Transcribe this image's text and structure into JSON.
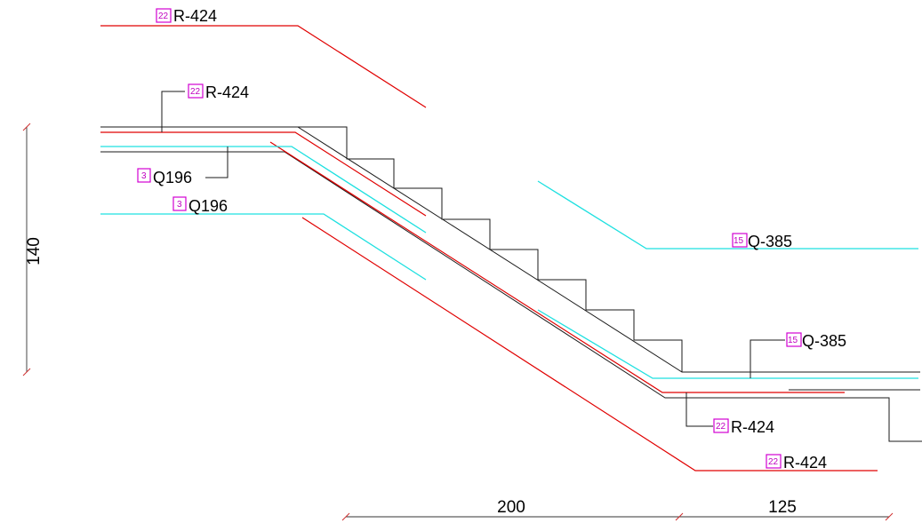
{
  "labels": [
    {
      "id": "r424-top",
      "tag": "22",
      "text": "R-424"
    },
    {
      "id": "r424-upper",
      "tag": "22",
      "text": "R-424"
    },
    {
      "id": "q196-upper",
      "tag": "3",
      "text": "Q196"
    },
    {
      "id": "q196-lower",
      "tag": "3",
      "text": "Q196"
    },
    {
      "id": "q385-right",
      "tag": "15",
      "text": "Q-385"
    },
    {
      "id": "q385-landing",
      "tag": "15",
      "text": "Q-385"
    },
    {
      "id": "r424-landing",
      "tag": "22",
      "text": "R-424"
    },
    {
      "id": "r424-bottom",
      "tag": "22",
      "text": "R-424"
    }
  ],
  "dimensions": {
    "height": "140",
    "width_flight": "200",
    "width_landing": "125"
  },
  "colors": {
    "concrete": "#1a1a1a",
    "rebar_r424": "#e00000",
    "mesh_q": "#1de0e0",
    "tag": "#d100d1"
  }
}
